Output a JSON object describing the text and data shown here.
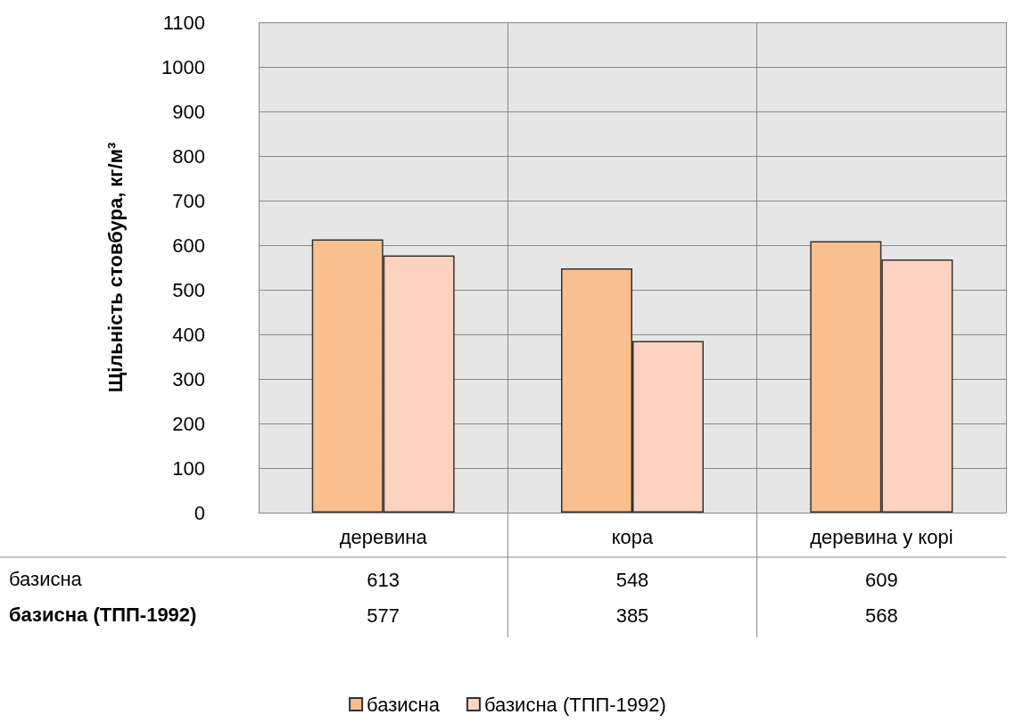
{
  "chart_data": {
    "type": "bar",
    "ylabel": "Щільність стовбура, кг/м³",
    "categories": [
      "деревина",
      "кора",
      "деревина у корі"
    ],
    "series": [
      {
        "name": "базисна",
        "color": "#f9bf8f",
        "values": [
          613,
          548,
          609
        ]
      },
      {
        "name": "базисна (ТПП-1992)",
        "color": "#fcd3c0",
        "values": [
          577,
          385,
          568
        ]
      }
    ],
    "ylim": [
      0,
      1100
    ],
    "yticks": [
      0,
      100,
      200,
      300,
      400,
      500,
      600,
      700,
      800,
      900,
      1000,
      1100
    ],
    "grid": true,
    "legend": "bottom",
    "data_labels": true
  }
}
